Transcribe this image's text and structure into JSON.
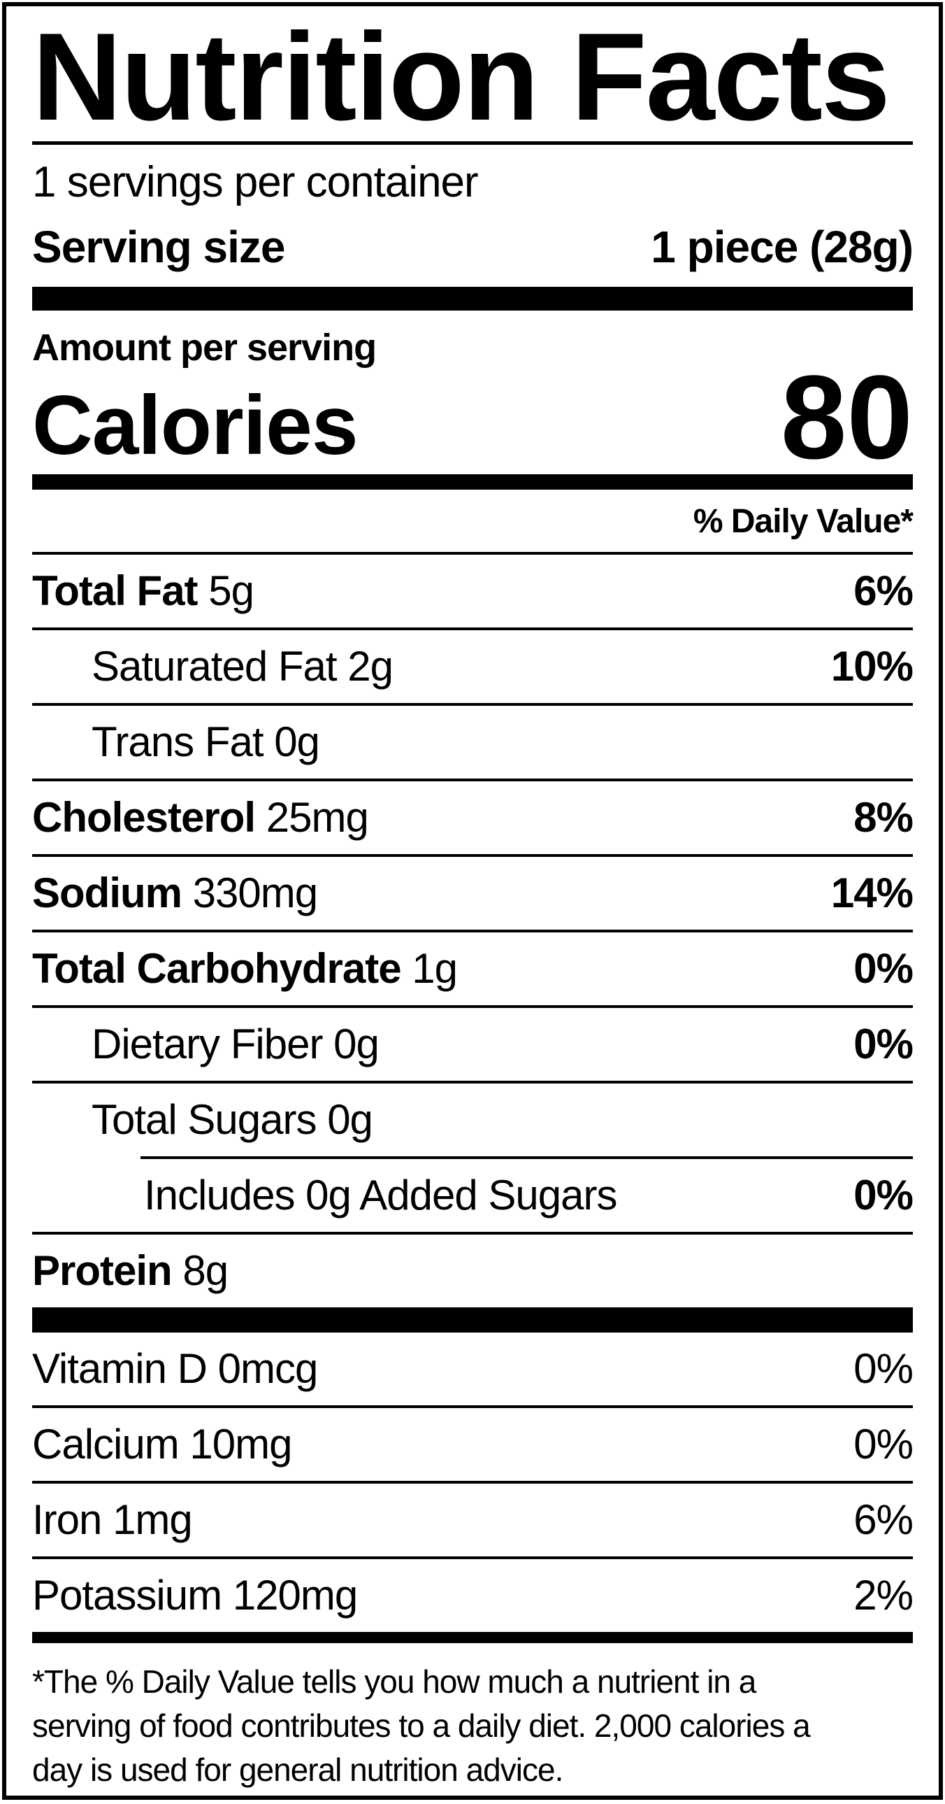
{
  "title": "Nutrition Facts",
  "servings_per_container": "1 servings per container",
  "serving_size": {
    "label": "Serving size",
    "value": "1 piece (28g)"
  },
  "calories_section": {
    "amount_label": "Amount per serving",
    "label": "Calories",
    "value": "80"
  },
  "daily_value_header": "% Daily Value*",
  "nutrients": [
    {
      "name": "Total Fat",
      "amount": "5g",
      "dv": "6%"
    },
    {
      "name": "Saturated Fat",
      "amount": "2g",
      "dv": "10%"
    },
    {
      "name": "Trans Fat",
      "amount": "0g",
      "dv": ""
    },
    {
      "name": "Cholesterol",
      "amount": "25mg",
      "dv": "8%"
    },
    {
      "name": "Sodium",
      "amount": "330mg",
      "dv": "14%"
    },
    {
      "name": "Total Carbohydrate",
      "amount": "1g",
      "dv": "0%"
    },
    {
      "name": "Dietary Fiber",
      "amount": "0g",
      "dv": "0%"
    },
    {
      "name": "Total Sugars",
      "amount": "0g",
      "dv": ""
    },
    {
      "name": "Includes 0g Added Sugars",
      "amount": "",
      "dv": "0%"
    },
    {
      "name": "Protein",
      "amount": "8g",
      "dv": ""
    }
  ],
  "vitamins": [
    {
      "name": "Vitamin D",
      "amount": "0mcg",
      "dv": "0%"
    },
    {
      "name": "Calcium",
      "amount": "10mg",
      "dv": "0%"
    },
    {
      "name": "Iron",
      "amount": "1mg",
      "dv": "6%"
    },
    {
      "name": "Potassium",
      "amount": "120mg",
      "dv": "2%"
    }
  ],
  "footnote_lines": [
    "*The % Daily Value tells you how much a nutrient in a",
    "serving of food contributes to a daily diet. 2,000 calories a",
    "day is used for general nutrition advice."
  ],
  "colors": {
    "text": "#000000",
    "background": "#ffffff"
  }
}
